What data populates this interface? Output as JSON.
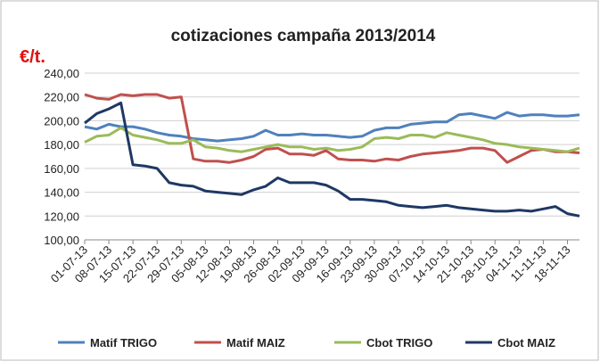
{
  "chart_data": {
    "type": "line",
    "title": "cotizaciones campaña  2013/2014",
    "y_label": "€/t.",
    "categories": [
      "01-07-13",
      null,
      "08-07-13",
      null,
      "15-07-13",
      null,
      "22-07-13",
      null,
      "29-07-13",
      null,
      "05-08-13",
      null,
      "12-08-13",
      null,
      "19-08-13",
      null,
      "26-08-13",
      null,
      "02-09-13",
      null,
      "09-09-13",
      null,
      "16-09-13",
      null,
      "23-09-13",
      null,
      "30-09-13",
      null,
      "07-10-13",
      null,
      "14-10-13",
      null,
      "21-10-13",
      null,
      "28-10-13",
      null,
      "04-11-13",
      null,
      "11-11-13",
      null,
      "18-11-13",
      null
    ],
    "series": [
      {
        "name": "Matif TRIGO",
        "color": "#4f81bd",
        "values": [
          195,
          193,
          197,
          195,
          195,
          193,
          190,
          188,
          187,
          185,
          184,
          183,
          184,
          185,
          187,
          192,
          188,
          188,
          189,
          188,
          188,
          187,
          186,
          187,
          192,
          194,
          194,
          197,
          198,
          199,
          199,
          205,
          206,
          204,
          202,
          207,
          204,
          205,
          205,
          204,
          204,
          205
        ]
      },
      {
        "name": "Matif MAIZ",
        "color": "#c0504d",
        "values": [
          222,
          219,
          218,
          222,
          221,
          222,
          222,
          219,
          220,
          168,
          166,
          166,
          165,
          167,
          170,
          176,
          177,
          172,
          172,
          171,
          175,
          168,
          167,
          167,
          166,
          168,
          167,
          170,
          172,
          173,
          174,
          175,
          177,
          177,
          175,
          165,
          170,
          175,
          176,
          174,
          174,
          173
        ]
      },
      {
        "name": "Cbot TRIGO",
        "color": "#9bbb59",
        "values": [
          182,
          187,
          188,
          194,
          188,
          186,
          184,
          181,
          181,
          184,
          178,
          177,
          175,
          174,
          176,
          178,
          180,
          178,
          178,
          176,
          177,
          175,
          176,
          178,
          185,
          186,
          185,
          188,
          188,
          186,
          190,
          188,
          186,
          184,
          181,
          180,
          178,
          177,
          176,
          175,
          174,
          177
        ]
      },
      {
        "name": "Cbot MAIZ",
        "color": "#1f3864",
        "values": [
          198,
          206,
          210,
          215,
          163,
          162,
          160,
          148,
          146,
          145,
          141,
          140,
          139,
          138,
          142,
          145,
          152,
          148,
          148,
          148,
          146,
          141,
          134,
          134,
          133,
          132,
          129,
          128,
          127,
          128,
          129,
          127,
          126,
          125,
          124,
          124,
          125,
          124,
          126,
          128,
          122,
          120
        ]
      }
    ],
    "ylim": [
      100,
      240
    ],
    "yticks": [
      {
        "value": 100,
        "label": "100,00"
      },
      {
        "value": 120,
        "label": "120,00"
      },
      {
        "value": 140,
        "label": "140,00"
      },
      {
        "value": 160,
        "label": "160,00"
      },
      {
        "value": 180,
        "label": "180,00"
      },
      {
        "value": 200,
        "label": "200,00"
      },
      {
        "value": 220,
        "label": "220,00"
      },
      {
        "value": 240,
        "label": "240,00"
      }
    ],
    "grid": true,
    "legend": "bottom"
  }
}
